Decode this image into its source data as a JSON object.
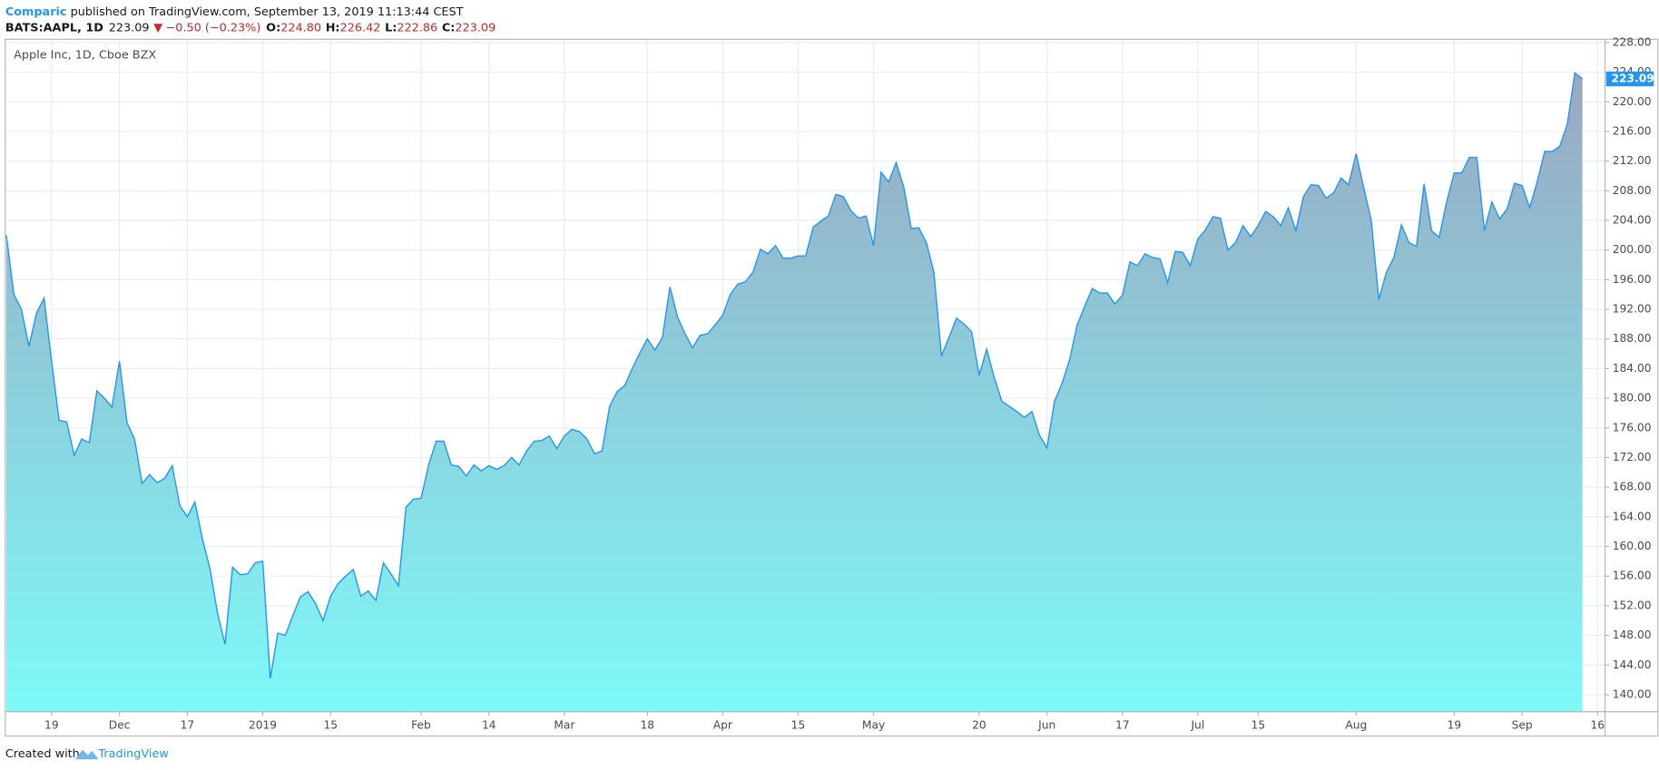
{
  "header": {
    "author": "Comparic",
    "published": " published on TradingView.com, September 13, 2019 11:13:44 CEST",
    "symbol": "BATS:AAPL, 1D",
    "last": "223.09",
    "change": "−0.50 (−0.23%)",
    "ohlc": [
      {
        "label": "O:",
        "value": "224.80"
      },
      {
        "label": "H:",
        "value": "226.42"
      },
      {
        "label": "L:",
        "value": "222.86"
      },
      {
        "label": "C:",
        "value": "223.09"
      }
    ]
  },
  "footer": {
    "text": "Created with",
    "brand": "TradingView"
  },
  "chart_data": {
    "type": "area",
    "title": "Apple Inc, 1D, Cboe BZX",
    "grid": true,
    "fill_gradient": [
      "#9aa7c0",
      "#7ef9f8"
    ],
    "xlim": [
      0,
      212
    ],
    "xticks": [
      {
        "value": 6,
        "label": "19"
      },
      {
        "value": 15,
        "label": "Dec"
      },
      {
        "value": 24,
        "label": "17"
      },
      {
        "value": 34,
        "label": "2019"
      },
      {
        "value": 43,
        "label": "15"
      },
      {
        "value": 55,
        "label": "Feb"
      },
      {
        "value": 64,
        "label": "14"
      },
      {
        "value": 74,
        "label": "Mar"
      },
      {
        "value": 85,
        "label": "18"
      },
      {
        "value": 95,
        "label": "Apr"
      },
      {
        "value": 105,
        "label": "15"
      },
      {
        "value": 115,
        "label": "May"
      },
      {
        "value": 129,
        "label": "20"
      },
      {
        "value": 138,
        "label": "Jun"
      },
      {
        "value": 148,
        "label": "17"
      },
      {
        "value": 158,
        "label": "Jul"
      },
      {
        "value": 166,
        "label": "15"
      },
      {
        "value": 179,
        "label": "Aug"
      },
      {
        "value": 192,
        "label": "19"
      },
      {
        "value": 201,
        "label": "Sep"
      },
      {
        "value": 211,
        "label": "16"
      }
    ],
    "ylim": [
      137.7,
      228.3
    ],
    "yticks": [
      {
        "value": 140,
        "label": "140.00"
      },
      {
        "value": 144,
        "label": "144.00"
      },
      {
        "value": 148,
        "label": "148.00"
      },
      {
        "value": 152,
        "label": "152.00"
      },
      {
        "value": 156,
        "label": "156.00"
      },
      {
        "value": 160,
        "label": "160.00"
      },
      {
        "value": 164,
        "label": "164.00"
      },
      {
        "value": 168,
        "label": "168.00"
      },
      {
        "value": 172,
        "label": "172.00"
      },
      {
        "value": 176,
        "label": "176.00"
      },
      {
        "value": 180,
        "label": "180.00"
      },
      {
        "value": 184,
        "label": "184.00"
      },
      {
        "value": 188,
        "label": "188.00"
      },
      {
        "value": 192,
        "label": "192.00"
      },
      {
        "value": 196,
        "label": "196.00"
      },
      {
        "value": 200,
        "label": "200.00"
      },
      {
        "value": 204,
        "label": "204.00"
      },
      {
        "value": 208,
        "label": "208.00"
      },
      {
        "value": 212,
        "label": "212.00"
      },
      {
        "value": 216,
        "label": "216.00"
      },
      {
        "value": 220,
        "label": "220.00"
      },
      {
        "value": 224,
        "label": "224.00"
      },
      {
        "value": 228,
        "label": "228.00"
      }
    ],
    "series": [
      {
        "name": "AAPL",
        "color": "#2196f3",
        "values": [
          202,
          194,
          192,
          187,
          191.5,
          193.5,
          185,
          177,
          176.8,
          172.3,
          174.5,
          174,
          181,
          180,
          178.8,
          185,
          176.7,
          174.5,
          168.5,
          169.7,
          168.6,
          169.2,
          170.9,
          165.5,
          164,
          166,
          161,
          157,
          151,
          146.8,
          157.2,
          156.2,
          156.3,
          157.8,
          158,
          142.2,
          148.3,
          148,
          150.7,
          153.2,
          153.9,
          152.3,
          150,
          153.3,
          155,
          156,
          156.9,
          153.3,
          154,
          152.7,
          157.8,
          156.3,
          154.7,
          165.3,
          166.4,
          166.5,
          171,
          174.2,
          174.2,
          171,
          170.8,
          169.5,
          171,
          170.2,
          170.9,
          170.4,
          170.9,
          172,
          171,
          172.9,
          174.2,
          174.3,
          174.9,
          173.2,
          174.9,
          175.8,
          175.5,
          174.5,
          172.5,
          172.9,
          178.9,
          180.9,
          181.7,
          184,
          186.1,
          188,
          186.5,
          188.2,
          195,
          191,
          188.7,
          186.8,
          188.5,
          188.7,
          189.9,
          191.2,
          194,
          195.4,
          195.7,
          197,
          200.1,
          199.5,
          200.6,
          198.9,
          198.9,
          199.2,
          199.2,
          203.1,
          203.9,
          204.6,
          207.5,
          207.2,
          205.3,
          204.3,
          204.6,
          200.6,
          210.5,
          209.2,
          211.8,
          208.5,
          202.9,
          203,
          201,
          197,
          185.7,
          188.2,
          190.8,
          190,
          189,
          183.1,
          186.6,
          182.8,
          179.6,
          178.9,
          178.2,
          177.4,
          178.2,
          175,
          173.3,
          179.6,
          182,
          185.2,
          189.9,
          192.4,
          194.8,
          194.2,
          194.2,
          192.7,
          193.9,
          198.4,
          197.9,
          199.5,
          199,
          198.8,
          195.6,
          199.8,
          199.7,
          197.9,
          201.5,
          202.7,
          204.5,
          204.3,
          200,
          201,
          203.3,
          201.8,
          203.3,
          205.2,
          204.5,
          203.3,
          205.7,
          202.6,
          207.2,
          208.8,
          208.7,
          207,
          207.7,
          209.7,
          208.8,
          213,
          208.4,
          204,
          193.3,
          197,
          199,
          203.4,
          201,
          200.5,
          208.9,
          202.6,
          201.7,
          206.5,
          210.4,
          210.4,
          212.5,
          212.5,
          202.6,
          206.5,
          204.2,
          205.5,
          209,
          208.7,
          205.7,
          209.2,
          213.3,
          213.3,
          214,
          217,
          223.9,
          223.09
        ]
      }
    ]
  }
}
